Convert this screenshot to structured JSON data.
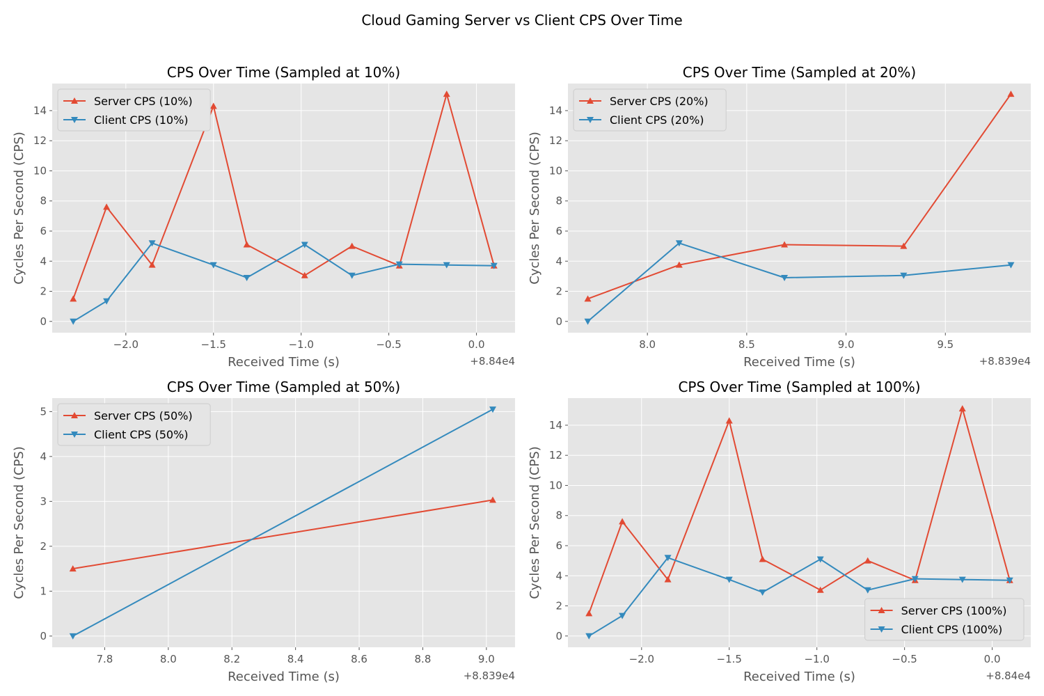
{
  "figure": {
    "title": "Cloud Gaming Server vs Client CPS Over Time",
    "background": "#ffffff",
    "axes_background": "#e5e5e5",
    "grid_color": "#ffffff"
  },
  "chart_data": [
    {
      "type": "line",
      "title": "CPS Over Time (Sampled at 10%)",
      "xlabel": "Received Time (s)",
      "ylabel": "Cycles Per Second (CPS)",
      "x_offset_label": "+8.84e4",
      "xlim": [
        -2.42,
        0.22
      ],
      "ylim": [
        -0.75,
        15.8
      ],
      "xticks": [
        -2.0,
        -1.5,
        -1.0,
        -0.5,
        0.0
      ],
      "xtick_labels": [
        "−2.0",
        "−1.5",
        "−1.0",
        "−0.5",
        "0.0"
      ],
      "yticks": [
        0,
        2,
        4,
        6,
        8,
        10,
        12,
        14
      ],
      "ytick_labels": [
        "0",
        "2",
        "4",
        "6",
        "8",
        "10",
        "12",
        "14"
      ],
      "grid": true,
      "legend_position": "upper left",
      "series": [
        {
          "name": "Server CPS (10%)",
          "color": "#E24A33",
          "marker": "triangle-up",
          "x": [
            -2.3,
            -2.11,
            -1.85,
            -1.5,
            -1.31,
            -0.98,
            -0.71,
            -0.44,
            -0.17,
            0.1
          ],
          "y": [
            1.5,
            7.6,
            3.75,
            14.3,
            5.1,
            3.05,
            5.0,
            3.7,
            15.1,
            3.7
          ]
        },
        {
          "name": "Client CPS (10%)",
          "color": "#348ABD",
          "marker": "triangle-down",
          "x": [
            -2.3,
            -2.11,
            -1.85,
            -1.5,
            -1.31,
            -0.98,
            -0.71,
            -0.44,
            -0.17,
            0.1
          ],
          "y": [
            0.0,
            1.35,
            5.2,
            3.75,
            2.9,
            5.1,
            3.05,
            3.8,
            3.75,
            3.7
          ]
        }
      ]
    },
    {
      "type": "line",
      "title": "CPS Over Time (Sampled at 20%)",
      "xlabel": "Received Time (s)",
      "ylabel": "Cycles Per Second (CPS)",
      "x_offset_label": "+8.839e4",
      "xlim": [
        7.6,
        9.93
      ],
      "ylim": [
        -0.75,
        15.8
      ],
      "xticks": [
        8.0,
        8.5,
        9.0,
        9.5
      ],
      "xtick_labels": [
        "8.0",
        "8.5",
        "9.0",
        "9.5"
      ],
      "yticks": [
        0,
        2,
        4,
        6,
        8,
        10,
        12,
        14
      ],
      "ytick_labels": [
        "0",
        "2",
        "4",
        "6",
        "8",
        "10",
        "12",
        "14"
      ],
      "grid": true,
      "legend_position": "upper left",
      "series": [
        {
          "name": "Server CPS (20%)",
          "color": "#E24A33",
          "marker": "triangle-up",
          "x": [
            7.7,
            8.16,
            8.69,
            9.29,
            9.83
          ],
          "y": [
            1.5,
            3.75,
            5.1,
            5.0,
            15.1
          ]
        },
        {
          "name": "Client CPS (20%)",
          "color": "#348ABD",
          "marker": "triangle-down",
          "x": [
            7.7,
            8.16,
            8.69,
            9.29,
            9.83
          ],
          "y": [
            0.0,
            5.2,
            2.9,
            3.05,
            3.75
          ]
        }
      ]
    },
    {
      "type": "line",
      "title": "CPS Over Time (Sampled at 50%)",
      "xlabel": "Received Time (s)",
      "ylabel": "Cycles Per Second (CPS)",
      "x_offset_label": "+8.839e4",
      "xlim": [
        7.635,
        9.09
      ],
      "ylim": [
        -0.25,
        5.3
      ],
      "xticks": [
        7.8,
        8.0,
        8.2,
        8.4,
        8.6,
        8.8,
        9.0
      ],
      "xtick_labels": [
        "7.8",
        "8.0",
        "8.2",
        "8.4",
        "8.6",
        "8.8",
        "9.0"
      ],
      "yticks": [
        0,
        1,
        2,
        3,
        4,
        5
      ],
      "ytick_labels": [
        "0",
        "1",
        "2",
        "3",
        "4",
        "5"
      ],
      "grid": true,
      "legend_position": "upper left",
      "series": [
        {
          "name": "Server CPS (50%)",
          "color": "#E24A33",
          "marker": "triangle-up",
          "x": [
            7.7,
            9.02
          ],
          "y": [
            1.5,
            3.03
          ]
        },
        {
          "name": "Client CPS (50%)",
          "color": "#348ABD",
          "marker": "triangle-down",
          "x": [
            7.7,
            9.02
          ],
          "y": [
            0.0,
            5.05
          ]
        }
      ]
    },
    {
      "type": "line",
      "title": "CPS Over Time (Sampled at 100%)",
      "xlabel": "Received Time (s)",
      "ylabel": "Cycles Per Second (CPS)",
      "x_offset_label": "+8.84e4",
      "xlim": [
        -2.42,
        0.22
      ],
      "ylim": [
        -0.75,
        15.8
      ],
      "xticks": [
        -2.0,
        -1.5,
        -1.0,
        -0.5,
        0.0
      ],
      "xtick_labels": [
        "−2.0",
        "−1.5",
        "−1.0",
        "−0.5",
        "0.0"
      ],
      "yticks": [
        0,
        2,
        4,
        6,
        8,
        10,
        12,
        14
      ],
      "ytick_labels": [
        "0",
        "2",
        "4",
        "6",
        "8",
        "10",
        "12",
        "14"
      ],
      "grid": true,
      "legend_position": "lower right",
      "series": [
        {
          "name": "Server CPS (100%)",
          "color": "#E24A33",
          "marker": "triangle-up",
          "x": [
            -2.3,
            -2.11,
            -1.85,
            -1.5,
            -1.31,
            -0.98,
            -0.71,
            -0.44,
            -0.17,
            0.1
          ],
          "y": [
            1.5,
            7.6,
            3.75,
            14.3,
            5.1,
            3.05,
            5.0,
            3.7,
            15.1,
            3.7
          ]
        },
        {
          "name": "Client CPS (100%)",
          "color": "#348ABD",
          "marker": "triangle-down",
          "x": [
            -2.3,
            -2.11,
            -1.85,
            -1.5,
            -1.31,
            -0.98,
            -0.71,
            -0.44,
            -0.17,
            0.1
          ],
          "y": [
            0.0,
            1.35,
            5.2,
            3.75,
            2.9,
            5.1,
            3.05,
            3.8,
            3.75,
            3.7
          ]
        }
      ]
    }
  ]
}
